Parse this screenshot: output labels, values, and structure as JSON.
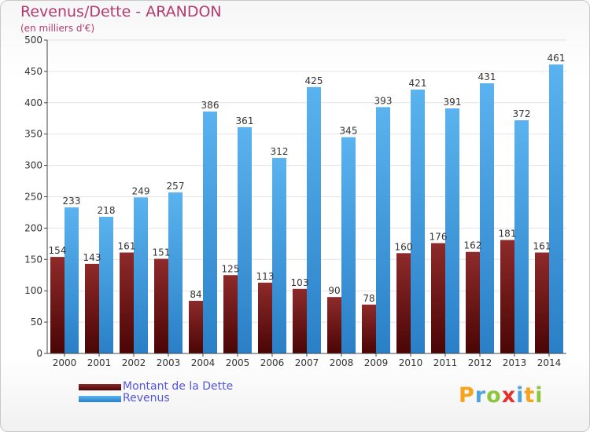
{
  "title": "Revenus/Dette - ARANDON",
  "subtitle": "(en milliers d'€)",
  "logo": {
    "text": "Proxiti",
    "letters": [
      {
        "ch": "P",
        "color": "#f7a21b"
      },
      {
        "ch": "r",
        "color": "#4da3de"
      },
      {
        "ch": "o",
        "color": "#8cc63f"
      },
      {
        "ch": "x",
        "color": "#e2322d"
      },
      {
        "ch": "i",
        "color": "#4da3de"
      },
      {
        "ch": "t",
        "color": "#f7a21b"
      },
      {
        "ch": "i",
        "color": "#8cc63f"
      }
    ]
  },
  "legend": [
    {
      "label": "Montant de la Dette",
      "color": "#6b0f0f"
    },
    {
      "label": "Revenus",
      "color": "#4aa3e4"
    }
  ],
  "chart_data": {
    "type": "bar",
    "title": "Revenus/Dette - ARANDON",
    "subtitle": "(en milliers d'€)",
    "xlabel": "",
    "ylabel": "",
    "ylim": [
      0,
      500
    ],
    "yticks": [
      0,
      50,
      100,
      150,
      200,
      250,
      300,
      350,
      400,
      450,
      500
    ],
    "grid": true,
    "legend_position": "bottom-left",
    "categories": [
      "2000",
      "2001",
      "2002",
      "2003",
      "2004",
      "2005",
      "2006",
      "2007",
      "2008",
      "2009",
      "2010",
      "2011",
      "2012",
      "2013",
      "2014"
    ],
    "series": [
      {
        "name": "Montant de la Dette",
        "color": "#6b0f0f",
        "values": [
          154,
          143,
          161,
          151,
          84,
          125,
          113,
          103,
          90,
          78,
          160,
          176,
          162,
          181,
          161
        ]
      },
      {
        "name": "Revenus",
        "color": "#4aa3e4",
        "values": [
          233,
          218,
          249,
          257,
          386,
          361,
          312,
          425,
          345,
          393,
          421,
          391,
          431,
          372,
          461
        ]
      }
    ]
  }
}
